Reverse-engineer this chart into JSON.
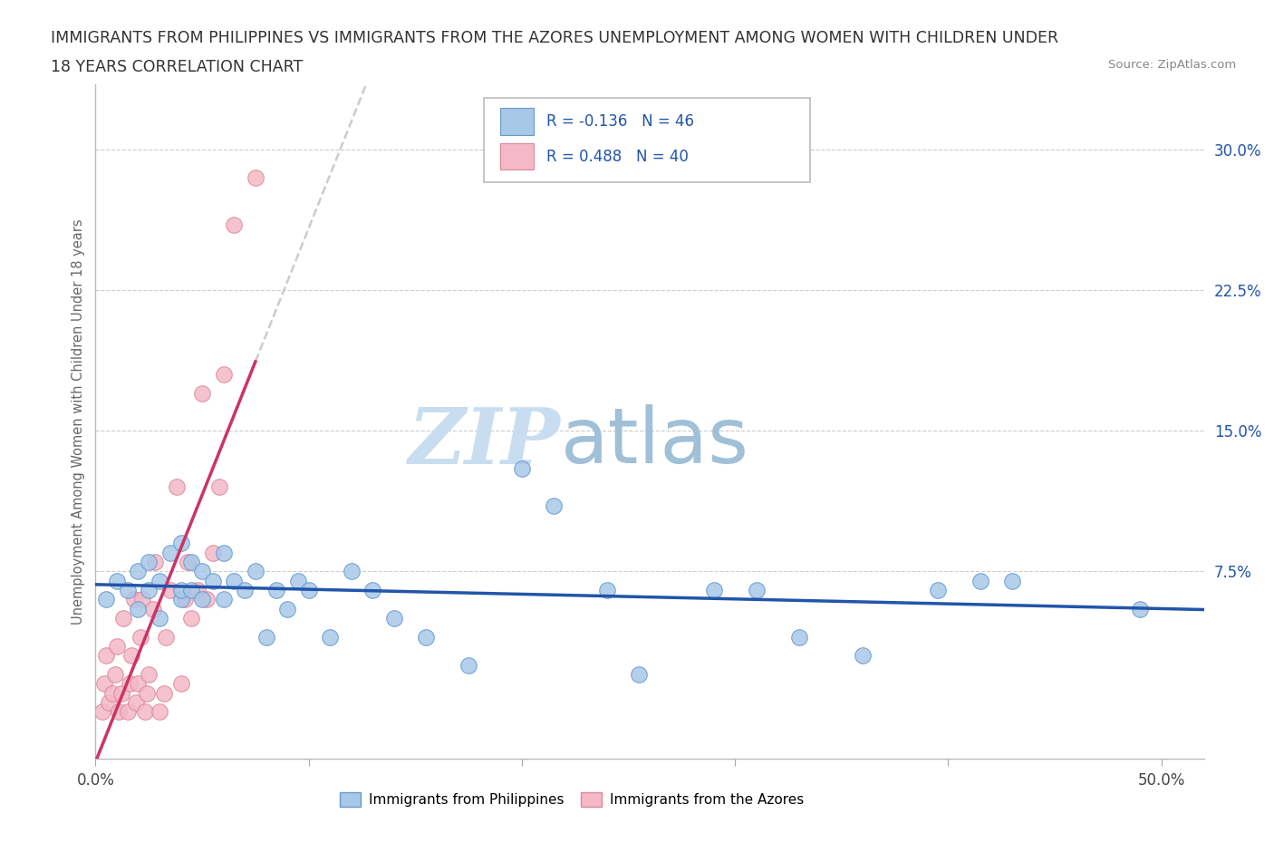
{
  "title_line1": "IMMIGRANTS FROM PHILIPPINES VS IMMIGRANTS FROM THE AZORES UNEMPLOYMENT AMONG WOMEN WITH CHILDREN UNDER",
  "title_line2": "18 YEARS CORRELATION CHART",
  "source_text": "Source: ZipAtlas.com",
  "ylabel": "Unemployment Among Women with Children Under 18 years",
  "xlim": [
    0.0,
    0.52
  ],
  "ylim": [
    -0.025,
    0.335
  ],
  "yticks_right": [
    0.075,
    0.15,
    0.225,
    0.3
  ],
  "ytick_right_labels": [
    "7.5%",
    "15.0%",
    "22.5%",
    "30.0%"
  ],
  "grid_color": "#cccccc",
  "background_color": "#ffffff",
  "philippines_color": "#a8c8e8",
  "azores_color": "#f4b8c8",
  "philippines_edge": "#6699cc",
  "azores_edge": "#dd8899",
  "trend_philippines_color": "#2255aa",
  "trend_azores_solid_color": "#cc3366",
  "trend_azores_dash_color": "#cccccc",
  "legend_R_philippines": "R = -0.136",
  "legend_N_philippines": "N = 46",
  "legend_R_azores": "R = 0.488",
  "legend_N_azores": "N = 40",
  "watermark_zip": "ZIP",
  "watermark_atlas": "atlas",
  "watermark_color_zip": "#c8ddf0",
  "watermark_color_atlas": "#a0c0d8",
  "legend_text_color": "#2255aa",
  "philippines_x": [
    0.005,
    0.01,
    0.015,
    0.02,
    0.02,
    0.025,
    0.025,
    0.03,
    0.03,
    0.035,
    0.04,
    0.04,
    0.04,
    0.045,
    0.045,
    0.05,
    0.05,
    0.055,
    0.06,
    0.06,
    0.065,
    0.07,
    0.075,
    0.08,
    0.085,
    0.09,
    0.095,
    0.1,
    0.11,
    0.12,
    0.13,
    0.14,
    0.155,
    0.175,
    0.2,
    0.215,
    0.24,
    0.255,
    0.29,
    0.31,
    0.33,
    0.36,
    0.395,
    0.415,
    0.43,
    0.49
  ],
  "philippines_y": [
    0.06,
    0.07,
    0.065,
    0.055,
    0.075,
    0.065,
    0.08,
    0.05,
    0.07,
    0.085,
    0.06,
    0.065,
    0.09,
    0.065,
    0.08,
    0.06,
    0.075,
    0.07,
    0.06,
    0.085,
    0.07,
    0.065,
    0.075,
    0.04,
    0.065,
    0.055,
    0.07,
    0.065,
    0.04,
    0.075,
    0.065,
    0.05,
    0.04,
    0.025,
    0.13,
    0.11,
    0.065,
    0.02,
    0.065,
    0.065,
    0.04,
    0.03,
    0.065,
    0.07,
    0.07,
    0.055
  ],
  "azores_x": [
    0.003,
    0.004,
    0.005,
    0.006,
    0.008,
    0.009,
    0.01,
    0.011,
    0.012,
    0.013,
    0.015,
    0.016,
    0.017,
    0.018,
    0.019,
    0.02,
    0.021,
    0.022,
    0.023,
    0.024,
    0.025,
    0.027,
    0.028,
    0.03,
    0.032,
    0.033,
    0.035,
    0.038,
    0.04,
    0.042,
    0.043,
    0.045,
    0.048,
    0.05,
    0.052,
    0.055,
    0.058,
    0.06,
    0.065,
    0.075
  ],
  "azores_y": [
    0.0,
    0.015,
    0.03,
    0.005,
    0.01,
    0.02,
    0.035,
    0.0,
    0.01,
    0.05,
    0.0,
    0.015,
    0.03,
    0.06,
    0.005,
    0.015,
    0.04,
    0.06,
    0.0,
    0.01,
    0.02,
    0.055,
    0.08,
    0.0,
    0.01,
    0.04,
    0.065,
    0.12,
    0.015,
    0.06,
    0.08,
    0.05,
    0.065,
    0.17,
    0.06,
    0.085,
    0.12,
    0.18,
    0.26,
    0.285
  ]
}
